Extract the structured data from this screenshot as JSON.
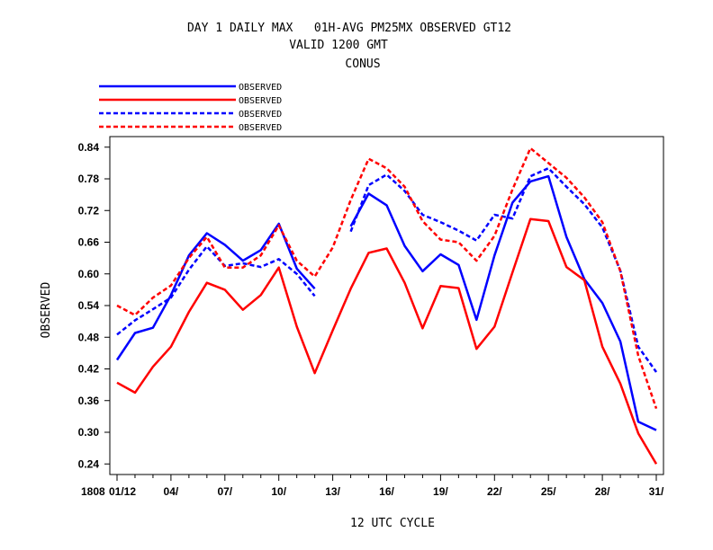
{
  "chart_data": {
    "type": "line",
    "title_lines": [
      "DAY 1 DAILY MAX   01H-AVG PM25MX OBSERVED GT12",
      "VALID 1200 GMT",
      "CONUS"
    ],
    "xlabel": "12 UTC CYCLE",
    "ylabel": "OBSERVED",
    "x_tick_labels": [
      "1808",
      "01/12",
      "04/",
      "07/",
      "10/",
      "13/",
      "16/",
      "19/",
      "22/",
      "25/",
      "28/",
      "31/"
    ],
    "x_tick_days": [
      1,
      4,
      7,
      10,
      13,
      16,
      19,
      22,
      25,
      28,
      31
    ],
    "xlim": [
      1,
      31
    ],
    "y_ticks": [
      0.24,
      0.3,
      0.36,
      0.42,
      0.48,
      0.54,
      0.6,
      0.66,
      0.72,
      0.78,
      0.84
    ],
    "y_tick_labels": [
      "0.24",
      "0.30",
      "0.36",
      "0.42",
      "0.48",
      "0.54",
      "0.60",
      "0.66",
      "0.72",
      "0.78",
      "0.84"
    ],
    "ylim": [
      0.22,
      0.86
    ],
    "grid": false,
    "legend_placement": "top-left, above plot",
    "x": [
      1,
      2,
      3,
      4,
      5,
      6,
      7,
      8,
      9,
      10,
      11,
      12,
      13,
      14,
      15,
      16,
      17,
      18,
      19,
      20,
      21,
      22,
      23,
      24,
      25,
      26,
      27,
      28,
      29,
      30,
      31
    ],
    "series": [
      {
        "name": "OBSERVED",
        "color": "#0000ff",
        "dash": "solid",
        "values": [
          0.437,
          0.488,
          0.498,
          0.56,
          0.635,
          0.677,
          0.655,
          0.625,
          0.645,
          0.695,
          0.61,
          0.572,
          null,
          0.69,
          0.752,
          0.73,
          0.653,
          0.605,
          0.637,
          0.617,
          0.513,
          0.635,
          0.735,
          0.775,
          0.785,
          0.67,
          0.59,
          0.545,
          0.472,
          0.32,
          0.304
        ]
      },
      {
        "name": "OBSERVED",
        "color": "#ff0000",
        "dash": "solid",
        "values": [
          0.394,
          0.375,
          0.424,
          0.462,
          0.528,
          0.583,
          0.57,
          0.532,
          0.56,
          0.612,
          0.5,
          0.412,
          0.493,
          0.572,
          0.64,
          0.648,
          0.583,
          0.497,
          0.577,
          0.573,
          0.458,
          0.5,
          0.603,
          0.704,
          0.7,
          0.613,
          0.588,
          0.462,
          0.392,
          0.298,
          0.24
        ]
      },
      {
        "name": "OBSERVED",
        "color": "#0000ff",
        "dash": "dashed",
        "values": [
          0.485,
          0.512,
          0.533,
          0.555,
          0.608,
          0.652,
          0.615,
          0.62,
          0.613,
          0.628,
          0.6,
          0.558,
          null,
          0.68,
          0.768,
          0.788,
          0.757,
          0.712,
          0.698,
          0.682,
          0.663,
          0.712,
          0.705,
          0.785,
          0.8,
          0.765,
          0.732,
          0.688,
          0.606,
          0.462,
          0.414
        ]
      },
      {
        "name": "OBSERVED",
        "color": "#ff0000",
        "dash": "dashed",
        "values": [
          0.54,
          0.522,
          0.555,
          0.578,
          0.63,
          0.67,
          0.612,
          0.612,
          0.635,
          0.692,
          0.625,
          0.595,
          0.65,
          0.74,
          0.818,
          0.8,
          0.765,
          0.7,
          0.665,
          0.66,
          0.625,
          0.672,
          0.76,
          0.838,
          0.81,
          0.782,
          0.745,
          0.698,
          0.605,
          0.445,
          0.345
        ]
      }
    ]
  }
}
